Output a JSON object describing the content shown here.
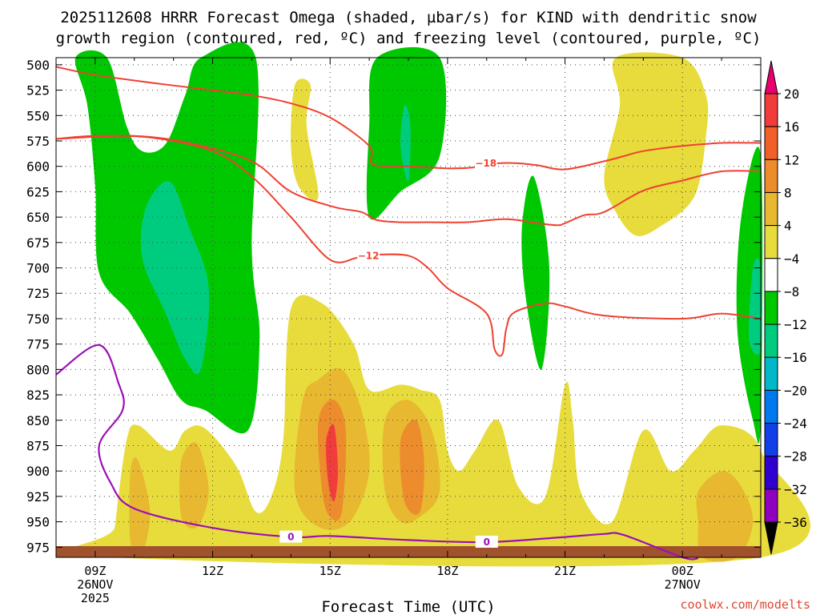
{
  "chart_data": {
    "type": "heatmap",
    "title_line1": "2025112608 HRRR Forecast Omega (shaded, µbar/s) for KIND with dendritic snow",
    "title_line2": "growth region (contoured, red, ºC) and freezing level (contoured, purple, ºC)",
    "xlabel": "Forecast Time (UTC)",
    "credit": "coolwx.com/modelts",
    "y_ticks": [
      "500",
      "525",
      "550",
      "575",
      "600",
      "625",
      "650",
      "675",
      "700",
      "725",
      "750",
      "775",
      "800",
      "825",
      "850",
      "875",
      "900",
      "925",
      "950",
      "975"
    ],
    "x_ticks": [
      {
        "hour": 9,
        "label": "09Z",
        "sub1": "26NOV",
        "sub2": "2025"
      },
      {
        "hour": 12,
        "label": "12Z",
        "sub1": "",
        "sub2": ""
      },
      {
        "hour": 15,
        "label": "15Z",
        "sub1": "",
        "sub2": ""
      },
      {
        "hour": 18,
        "label": "18Z",
        "sub1": "",
        "sub2": ""
      },
      {
        "hour": 21,
        "label": "21Z",
        "sub1": "",
        "sub2": ""
      },
      {
        "hour": 24,
        "label": "00Z",
        "sub1": "27NOV",
        "sub2": ""
      }
    ],
    "x_range_hours": [
      8,
      26
    ],
    "y_range_hPa": [
      493,
      985
    ],
    "colorbar": {
      "labels": [
        "20",
        "16",
        "12",
        "8",
        "4",
        "−4",
        "−8",
        "−12",
        "−16",
        "−20",
        "−24",
        "−28",
        "−32",
        "−36"
      ],
      "colors_top_to_bottom": [
        "#e8006e",
        "#f23c3c",
        "#f06028",
        "#ec8c2c",
        "#e8b830",
        "#e8dc3c",
        "#ffffff",
        "#00c800",
        "#00cc80",
        "#00b8c8",
        "#0078f0",
        "#1040e8",
        "#3000d0",
        "#9000c0",
        "#a8a8a8",
        "#000000"
      ]
    },
    "contour_labels": {
      "dgz_top": "−18",
      "dgz_bottom": "−12",
      "freezing_level": "0"
    },
    "dgz_top_line": [
      [
        8,
        573
      ],
      [
        10,
        570
      ],
      [
        11.5,
        578
      ],
      [
        13,
        595
      ],
      [
        14,
        625
      ],
      [
        15.1,
        640
      ],
      [
        15.8,
        645
      ],
      [
        16.2,
        653
      ],
      [
        16.8,
        655
      ],
      [
        17.5,
        655
      ],
      [
        18.5,
        655
      ],
      [
        19.5,
        652
      ],
      [
        20.3,
        656
      ],
      [
        20.8,
        658
      ],
      [
        21,
        656
      ],
      [
        21.5,
        648
      ],
      [
        22,
        645
      ],
      [
        23,
        624
      ],
      [
        24,
        614
      ],
      [
        25,
        605
      ],
      [
        26,
        605
      ]
    ],
    "dgz_bottom_line": [
      [
        8,
        502
      ],
      [
        9,
        510
      ],
      [
        10.5,
        518
      ],
      [
        12,
        525
      ],
      [
        13,
        530
      ],
      [
        14,
        538
      ],
      [
        15,
        552
      ],
      [
        16,
        580
      ],
      [
        16.1,
        598
      ],
      [
        17,
        600
      ],
      [
        18,
        602
      ],
      [
        18.7,
        601
      ],
      [
        19.3,
        597
      ],
      [
        19.8,
        597
      ],
      [
        20.3,
        599
      ],
      [
        21,
        603
      ],
      [
        22,
        595
      ],
      [
        22.5,
        590
      ],
      [
        23,
        585
      ],
      [
        24,
        580
      ],
      [
        25,
        577
      ],
      [
        26,
        577
      ]
    ],
    "dgz_bottom_inner": [
      [
        8,
        573
      ],
      [
        9,
        570
      ],
      [
        10.5,
        572
      ],
      [
        12,
        585
      ],
      [
        13,
        610
      ],
      [
        14,
        650
      ],
      [
        15,
        692
      ],
      [
        15.7,
        690
      ],
      [
        16.2,
        687
      ],
      [
        17,
        688
      ],
      [
        17.5,
        700
      ],
      [
        18,
        720
      ],
      [
        19,
        745
      ],
      [
        19.2,
        780
      ],
      [
        19.4,
        785
      ],
      [
        19.5,
        760
      ],
      [
        19.7,
        744
      ],
      [
        20.5,
        735
      ],
      [
        21,
        738
      ],
      [
        22,
        747
      ],
      [
        24,
        750
      ],
      [
        25,
        745
      ],
      [
        26,
        750
      ]
    ],
    "freezing_line": [
      [
        8,
        805
      ],
      [
        9.1,
        776
      ],
      [
        9.6,
        814
      ],
      [
        9.7,
        840
      ],
      [
        9.1,
        875
      ],
      [
        9.4,
        912
      ],
      [
        10,
        937
      ],
      [
        12,
        956
      ],
      [
        14,
        965
      ],
      [
        15,
        964
      ],
      [
        17,
        968
      ],
      [
        19,
        970
      ],
      [
        21,
        965
      ],
      [
        22,
        962
      ],
      [
        22.5,
        963
      ],
      [
        24,
        985
      ],
      [
        24.4,
        986
      ]
    ],
    "omega_fill_regions": [
      {
        "color": "#00c800",
        "pts": [
          [
            8.5,
            493
          ],
          [
            9.3,
            493
          ],
          [
            9.8,
            560
          ],
          [
            10.2,
            585
          ],
          [
            10.8,
            578
          ],
          [
            11.3,
            530
          ],
          [
            11.7,
            493
          ],
          [
            13.1,
            493
          ],
          [
            13,
            680
          ],
          [
            13.2,
            770
          ],
          [
            12.9,
            860
          ],
          [
            11.8,
            840
          ],
          [
            11.2,
            830
          ],
          [
            10.6,
            790
          ],
          [
            9.9,
            745
          ],
          [
            9.1,
            705
          ],
          [
            9,
            620
          ],
          [
            8.8,
            540
          ]
        ]
      },
      {
        "color": "#00c800",
        "pts": [
          [
            16.2,
            493
          ],
          [
            17.8,
            493
          ],
          [
            17.8,
            590
          ],
          [
            16.8,
            625
          ],
          [
            16,
            650
          ],
          [
            16,
            560
          ]
        ]
      },
      {
        "color": "#00c800",
        "pts": [
          [
            19.9,
            660
          ],
          [
            20.2,
            610
          ],
          [
            20.6,
            700
          ],
          [
            20.4,
            800
          ],
          [
            20,
            730
          ]
        ]
      },
      {
        "color": "#00c800",
        "pts": [
          [
            26,
            590
          ],
          [
            25.5,
            650
          ],
          [
            25.4,
            760
          ],
          [
            25.8,
            850
          ],
          [
            26,
            850
          ]
        ]
      },
      {
        "color": "#00cc80",
        "pts": [
          [
            10.3,
            640
          ],
          [
            10.9,
            615
          ],
          [
            11.4,
            660
          ],
          [
            11.9,
            720
          ],
          [
            11.7,
            800
          ],
          [
            11.3,
            790
          ],
          [
            10.8,
            745
          ],
          [
            10.2,
            690
          ]
        ]
      },
      {
        "color": "#00cc80",
        "pts": [
          [
            16.9,
            540
          ],
          [
            17.05,
            560
          ],
          [
            17,
            615
          ],
          [
            16.8,
            580
          ]
        ]
      },
      {
        "color": "#00cc80",
        "pts": [
          [
            25.8,
            700
          ],
          [
            26,
            700
          ],
          [
            26,
            780
          ],
          [
            25.7,
            770
          ]
        ]
      },
      {
        "color": "#e8dc3c",
        "pts": [
          [
            22.3,
            493
          ],
          [
            24,
            493
          ],
          [
            24.6,
            530
          ],
          [
            24.6,
            570
          ],
          [
            24.3,
            630
          ],
          [
            23.4,
            660
          ],
          [
            22.8,
            668
          ],
          [
            22.3,
            645
          ],
          [
            22,
            610
          ],
          [
            22.4,
            540
          ]
        ]
      },
      {
        "color": "#e8dc3c",
        "pts": [
          [
            14.1,
            520
          ],
          [
            14.5,
            520
          ],
          [
            14.4,
            560
          ],
          [
            14.7,
            630
          ],
          [
            14.2,
            620
          ],
          [
            14,
            580
          ]
        ]
      },
      {
        "color": "#e8dc3c",
        "pts": [
          [
            14,
            740
          ],
          [
            14.8,
            735
          ],
          [
            15.6,
            775
          ],
          [
            16,
            820
          ],
          [
            16.8,
            815
          ],
          [
            17.3,
            820
          ],
          [
            17.8,
            830
          ],
          [
            18,
            880
          ],
          [
            18.3,
            900
          ],
          [
            18.7,
            880
          ],
          [
            19.3,
            850
          ],
          [
            19.8,
            915
          ],
          [
            20.5,
            925
          ],
          [
            21,
            815
          ],
          [
            21.2,
            850
          ],
          [
            21.4,
            920
          ],
          [
            22.2,
            950
          ],
          [
            23,
            860
          ],
          [
            23.7,
            900
          ],
          [
            24.3,
            880
          ],
          [
            25,
            855
          ],
          [
            26,
            880
          ],
          [
            26,
            985
          ],
          [
            9.4,
            985
          ],
          [
            9.5,
            955
          ],
          [
            9.8,
            870
          ],
          [
            10.1,
            855
          ],
          [
            10.9,
            880
          ],
          [
            11.3,
            860
          ],
          [
            11.8,
            858
          ],
          [
            12.6,
            895
          ],
          [
            13.1,
            940
          ],
          [
            13.5,
            925
          ],
          [
            13.8,
            870
          ]
        ]
      },
      {
        "color": "#e8b830",
        "pts": [
          [
            14.3,
            830
          ],
          [
            14.7,
            810
          ],
          [
            15.3,
            800
          ],
          [
            15.8,
            840
          ],
          [
            16,
            900
          ],
          [
            15.5,
            950
          ],
          [
            14.7,
            955
          ],
          [
            14.1,
            920
          ]
        ]
      },
      {
        "color": "#e8b830",
        "pts": [
          [
            16.4,
            850
          ],
          [
            17,
            830
          ],
          [
            17.6,
            860
          ],
          [
            17.8,
            920
          ],
          [
            17.3,
            945
          ],
          [
            16.8,
            950
          ],
          [
            16.4,
            920
          ]
        ]
      },
      {
        "color": "#e8b830",
        "pts": [
          [
            11.2,
            890
          ],
          [
            11.6,
            873
          ],
          [
            11.9,
            920
          ],
          [
            11.6,
            955
          ],
          [
            11.2,
            945
          ]
        ]
      },
      {
        "color": "#e8b830",
        "pts": [
          [
            9.9,
            900
          ],
          [
            10.1,
            890
          ],
          [
            10.4,
            940
          ],
          [
            10.2,
            980
          ],
          [
            9.9,
            970
          ]
        ]
      },
      {
        "color": "#e8b830",
        "pts": [
          [
            24.4,
            920
          ],
          [
            25,
            900
          ],
          [
            25.5,
            915
          ],
          [
            25.8,
            950
          ],
          [
            25.4,
            985
          ],
          [
            24.5,
            985
          ],
          [
            24.4,
            950
          ]
        ]
      },
      {
        "color": "#ec8c2c",
        "pts": [
          [
            14.7,
            850
          ],
          [
            15.1,
            830
          ],
          [
            15.4,
            860
          ],
          [
            15.3,
            940
          ],
          [
            15,
            945
          ],
          [
            14.8,
            920
          ]
        ]
      },
      {
        "color": "#ec8c2c",
        "pts": [
          [
            16.8,
            870
          ],
          [
            17.2,
            850
          ],
          [
            17.4,
            890
          ],
          [
            17.3,
            940
          ],
          [
            16.9,
            930
          ]
        ]
      },
      {
        "color": "#f23c3c",
        "pts": [
          [
            14.9,
            870
          ],
          [
            15.1,
            855
          ],
          [
            15.2,
            900
          ],
          [
            15.1,
            930
          ],
          [
            14.95,
            910
          ]
        ]
      }
    ]
  }
}
